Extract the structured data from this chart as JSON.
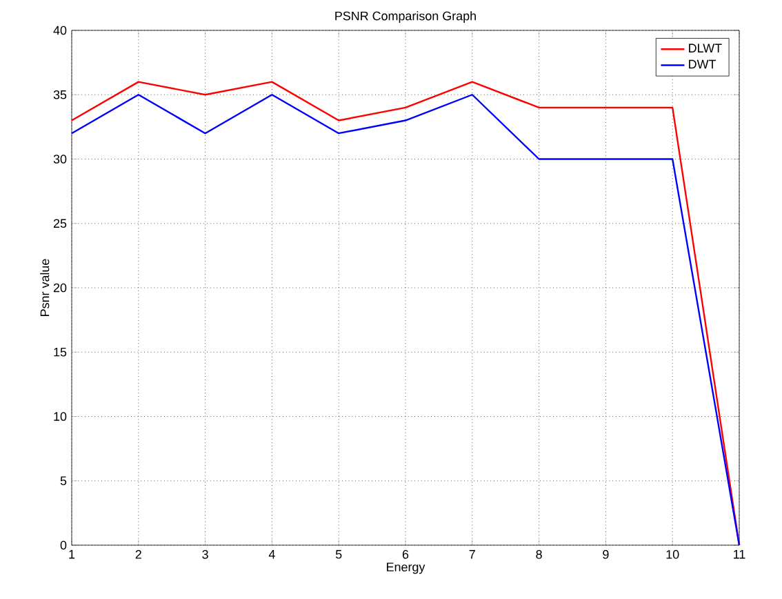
{
  "chart_data": {
    "type": "line",
    "title": "PSNR Comparison Graph",
    "xlabel": "Energy",
    "ylabel": "Psnr value",
    "x": [
      1,
      2,
      3,
      4,
      5,
      6,
      7,
      8,
      9,
      10,
      11
    ],
    "series": [
      {
        "name": "DLWT",
        "color": "#ff0000",
        "values": [
          33,
          36,
          35,
          36,
          33,
          34,
          36,
          34,
          34,
          34,
          0
        ]
      },
      {
        "name": "DWT",
        "color": "#0000ff",
        "values": [
          32,
          35,
          32,
          35,
          32,
          33,
          35,
          30,
          30,
          30,
          0
        ]
      }
    ],
    "xlim": [
      1,
      11
    ],
    "xticks": [
      1,
      2,
      3,
      4,
      5,
      6,
      7,
      8,
      9,
      10,
      11
    ],
    "ylim": [
      0,
      40
    ],
    "yticks": [
      0,
      5,
      10,
      15,
      20,
      25,
      30,
      35,
      40
    ],
    "grid": true,
    "legend": "top right",
    "marker": "none",
    "line_style": "solid"
  }
}
